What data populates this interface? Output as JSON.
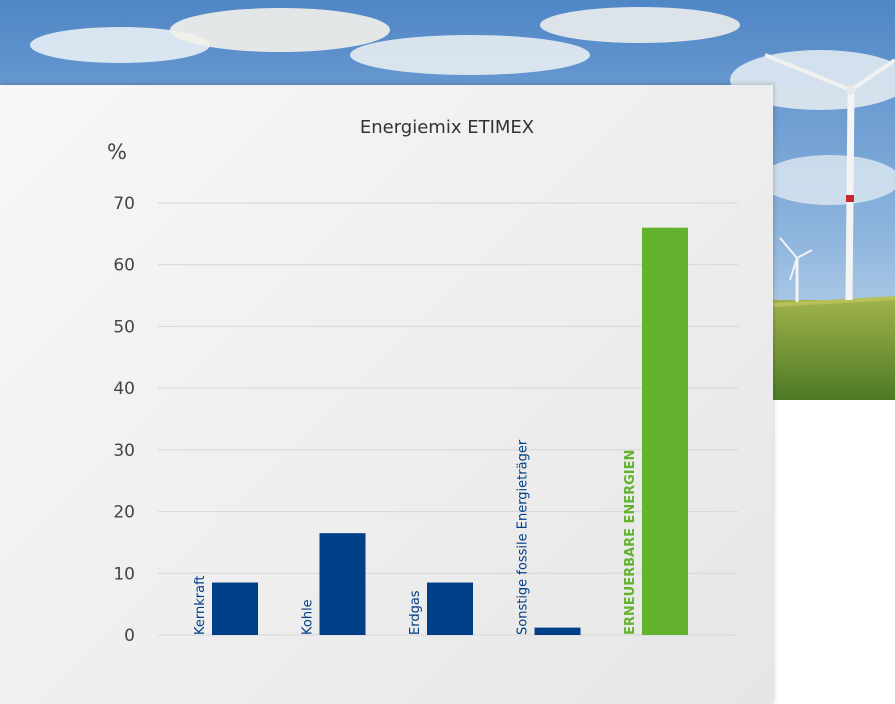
{
  "chart_data": {
    "type": "bar",
    "title": "Energiemix ETIMEX",
    "ylabel": "%",
    "xlabel": "",
    "ylim": [
      0,
      70
    ],
    "yticks": [
      0,
      10,
      20,
      30,
      40,
      50,
      60,
      70
    ],
    "grid": true,
    "categories": [
      "Kernkraft",
      "Kohle",
      "Erdgas",
      "Sonstige fossile Energieträger",
      "ERNEUERBARE ENERGIEN"
    ],
    "values": [
      8.5,
      16.5,
      8.5,
      1.2,
      66
    ],
    "colors": [
      "#003f87",
      "#003f87",
      "#003f87",
      "#003f87",
      "#64b32e"
    ],
    "label_colors": [
      "#003f87",
      "#003f87",
      "#003f87",
      "#003f87",
      "#64b32e"
    ]
  }
}
